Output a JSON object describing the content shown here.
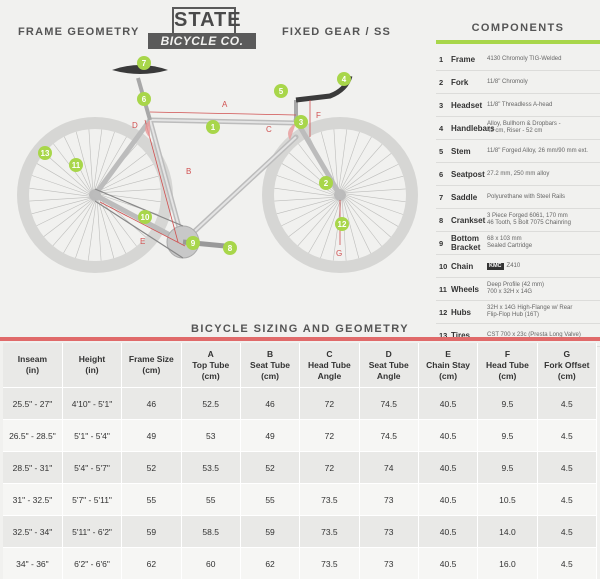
{
  "header": {
    "left": "FRAME GEOMETRY",
    "right": "FIXED GEAR / SS"
  },
  "logo": {
    "top": "STATE",
    "bottom": "BICYCLE CO."
  },
  "components": {
    "title": "COMPONENTS",
    "items": [
      {
        "num": "1",
        "name": "Frame",
        "value": "4130 Chromoly TIG-Welded"
      },
      {
        "num": "2",
        "name": "Fork",
        "value": "11/8\" Chromoly"
      },
      {
        "num": "3",
        "name": "Headset",
        "value": "11/8\" Threadless A-head"
      },
      {
        "num": "4",
        "name": "Handlebars",
        "value": "Alloy, Bullhorn & Dropbars -\n42 cm, Riser - 52 cm"
      },
      {
        "num": "5",
        "name": "Stem",
        "value": "11/8\" Forged Alloy, 26 mm/90 mm ext."
      },
      {
        "num": "6",
        "name": "Seatpost",
        "value": "27.2 mm, 250 mm alloy"
      },
      {
        "num": "7",
        "name": "Saddle",
        "value": "Polyurethane with Steel Rails"
      },
      {
        "num": "8",
        "name": "Crankset",
        "value": "3 Piece Forged 6061, 170 mm\n46 Tooth, 5 Bolt 7075 Chainring"
      },
      {
        "num": "9",
        "name": "Bottom Bracket",
        "value": "68 x 103 mm\nSealed Cartridge"
      },
      {
        "num": "10",
        "name": "Chain",
        "brand": "KMC",
        "value": "Z410"
      },
      {
        "num": "11",
        "name": "Wheels",
        "value": "Deep Profile (42 mm)\n700 x 32H x 14G"
      },
      {
        "num": "12",
        "name": "Hubs",
        "value": "32H x 14G High-Flange w/ Rear\nFlip-Flop Hub (16T)"
      },
      {
        "num": "13",
        "name": "Tires",
        "value": "CST 700 x 23c (Presta Long Valve)"
      }
    ]
  },
  "diagram": {
    "callouts": [
      "1",
      "2",
      "3",
      "4",
      "5",
      "6",
      "7",
      "8",
      "9",
      "10",
      "11",
      "12",
      "13"
    ],
    "dimensions": [
      "A",
      "B",
      "C",
      "D",
      "E",
      "F",
      "G"
    ]
  },
  "sizing": {
    "title": "BICYCLE SIZING AND GEOMETRY",
    "headers": [
      "Inseam\n(in)",
      "Height\n(in)",
      "Frame Size\n(cm)",
      "A\nTop Tube\n(cm)",
      "B\nSeat Tube\n(cm)",
      "C\nHead Tube\nAngle",
      "D\nSeat Tube\nAngle",
      "E\nChain Stay\n(cm)",
      "F\nHead Tube\n(cm)",
      "G\nFork Offset\n(cm)"
    ],
    "rows": [
      [
        "25.5\" - 27\"",
        "4'10\" - 5'1\"",
        "46",
        "52.5",
        "46",
        "72",
        "74.5",
        "40.5",
        "9.5",
        "4.5"
      ],
      [
        "26.5\" - 28.5\"",
        "5'1\" - 5'4\"",
        "49",
        "53",
        "49",
        "72",
        "74.5",
        "40.5",
        "9.5",
        "4.5"
      ],
      [
        "28.5\" - 31\"",
        "5'4\" - 5'7\"",
        "52",
        "53.5",
        "52",
        "72",
        "74",
        "40.5",
        "9.5",
        "4.5"
      ],
      [
        "31\" - 32.5\"",
        "5'7\" - 5'11\"",
        "55",
        "55",
        "55",
        "73.5",
        "73",
        "40.5",
        "10.5",
        "4.5"
      ],
      [
        "32.5\" - 34\"",
        "5'11\" - 6'2\"",
        "59",
        "58.5",
        "59",
        "73.5",
        "73",
        "40.5",
        "14.0",
        "4.5"
      ],
      [
        "34\" - 36\"",
        "6'2\" - 6'6\"",
        "62",
        "60",
        "62",
        "73.5",
        "73",
        "40.5",
        "16.0",
        "4.5"
      ]
    ]
  },
  "colors": {
    "accent_green": "#a8d64a",
    "accent_red": "#e06a6a",
    "dim_red": "#d05050"
  }
}
